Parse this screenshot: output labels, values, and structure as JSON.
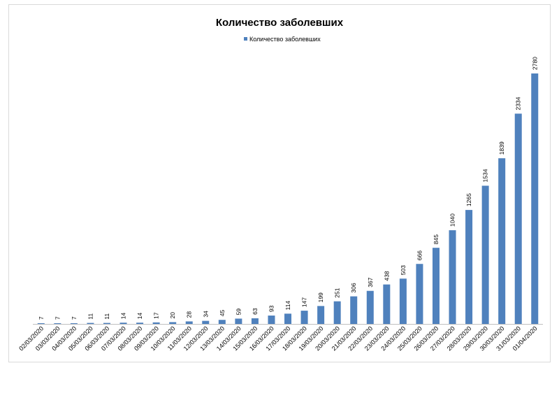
{
  "chart_data": {
    "type": "bar",
    "title": "Количество заболевших",
    "xlabel": "",
    "ylabel": "",
    "legend_position": "top",
    "grid": false,
    "ylim": [
      0,
      2780
    ],
    "categories": [
      "02/03/2020",
      "03/03/2020",
      "04/03/2020",
      "05/03/2020",
      "06/03/2020",
      "07/03/2020",
      "08/03/2020",
      "09/03/2020",
      "10/03/2020",
      "11/03/2020",
      "12/03/2020",
      "13/03/2020",
      "14/03/2020",
      "15/03/2020",
      "16/03/2020",
      "17/03/2020",
      "18/03/2020",
      "19/03/2020",
      "20/03/2020",
      "21/03/2020",
      "22/03/2020",
      "23/03/2020",
      "24/03/2020",
      "25/03/2020",
      "26/03/2020",
      "27/03/2020",
      "28/03/2020",
      "29/03/2020",
      "30/03/2020",
      "31/03/2020",
      "01/04/2020"
    ],
    "series": [
      {
        "name": "Количество заболевших",
        "color": "#4f81bd",
        "values": [
          7,
          7,
          7,
          11,
          11,
          14,
          14,
          17,
          20,
          28,
          34,
          45,
          59,
          63,
          93,
          114,
          147,
          199,
          251,
          306,
          367,
          438,
          503,
          666,
          845,
          1040,
          1265,
          1534,
          1839,
          2334,
          2780
        ]
      }
    ]
  }
}
